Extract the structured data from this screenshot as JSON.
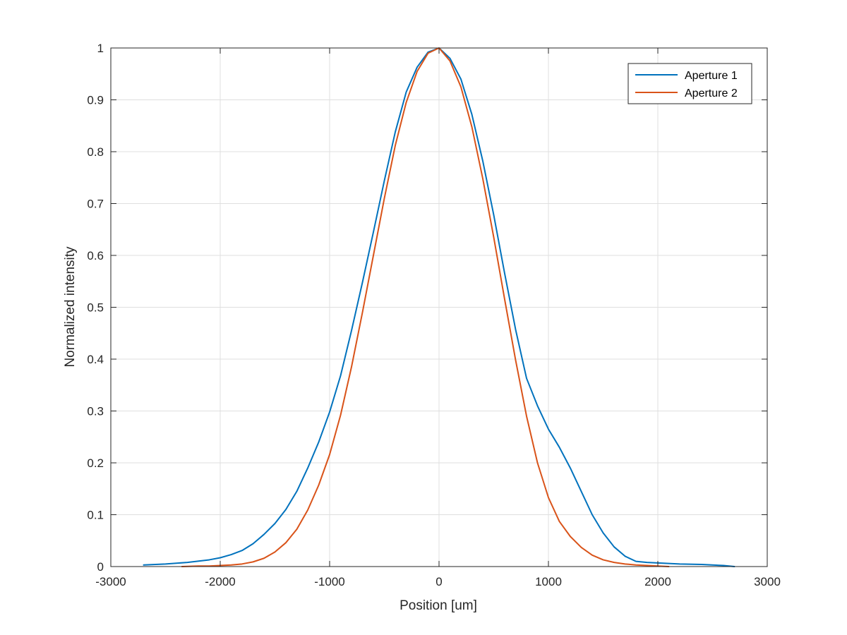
{
  "chart_data": {
    "type": "line",
    "xlabel": "Position [um]",
    "ylabel": "Normalized intensity",
    "xlim": [
      -3000,
      3000
    ],
    "ylim": [
      0,
      1
    ],
    "xticks": [
      -3000,
      -2000,
      -1000,
      0,
      1000,
      2000,
      3000
    ],
    "yticks": [
      0,
      0.1,
      0.2,
      0.3,
      0.4,
      0.5,
      0.6,
      0.7,
      0.8,
      0.9,
      1
    ],
    "xtick_labels": [
      "-3000",
      "-2000",
      "-1000",
      "0",
      "1000",
      "2000",
      "3000"
    ],
    "ytick_labels": [
      "0",
      "0.1",
      "0.2",
      "0.3",
      "0.4",
      "0.5",
      "0.6",
      "0.7",
      "0.8",
      "0.9",
      "1"
    ],
    "grid": true,
    "box": true,
    "legend_position": "top-right",
    "series": [
      {
        "name": "Aperture 1",
        "color": "#0072BD",
        "x": [
          -2700,
          -2500,
          -2300,
          -2100,
          -2000,
          -1900,
          -1800,
          -1700,
          -1600,
          -1500,
          -1400,
          -1300,
          -1200,
          -1100,
          -1000,
          -900,
          -800,
          -700,
          -600,
          -500,
          -400,
          -300,
          -200,
          -100,
          0,
          100,
          200,
          300,
          400,
          500,
          600,
          700,
          800,
          900,
          1000,
          1100,
          1200,
          1300,
          1400,
          1500,
          1600,
          1700,
          1800,
          1900,
          2000,
          2200,
          2400,
          2600,
          2700
        ],
        "y": [
          0.003,
          0.005,
          0.008,
          0.013,
          0.017,
          0.023,
          0.031,
          0.044,
          0.062,
          0.083,
          0.11,
          0.145,
          0.19,
          0.24,
          0.298,
          0.368,
          0.455,
          0.548,
          0.645,
          0.744,
          0.838,
          0.915,
          0.963,
          0.992,
          1.0,
          0.98,
          0.94,
          0.872,
          0.782,
          0.678,
          0.565,
          0.457,
          0.363,
          0.31,
          0.265,
          0.23,
          0.19,
          0.145,
          0.1,
          0.065,
          0.038,
          0.02,
          0.01,
          0.008,
          0.007,
          0.005,
          0.004,
          0.002,
          0.0
        ]
      },
      {
        "name": "Aperture 2",
        "color": "#D95319",
        "x": [
          -2350,
          -2200,
          -2100,
          -2000,
          -1900,
          -1800,
          -1700,
          -1600,
          -1500,
          -1400,
          -1300,
          -1200,
          -1100,
          -1000,
          -900,
          -800,
          -700,
          -600,
          -500,
          -400,
          -300,
          -200,
          -100,
          0,
          100,
          200,
          300,
          400,
          500,
          600,
          700,
          800,
          900,
          1000,
          1100,
          1200,
          1300,
          1400,
          1500,
          1600,
          1700,
          1800,
          1900,
          2000,
          2100
        ],
        "y": [
          0.0,
          0.001,
          0.001,
          0.002,
          0.003,
          0.005,
          0.009,
          0.016,
          0.028,
          0.046,
          0.072,
          0.109,
          0.157,
          0.216,
          0.292,
          0.385,
          0.49,
          0.6,
          0.71,
          0.812,
          0.895,
          0.955,
          0.99,
          1.0,
          0.975,
          0.925,
          0.848,
          0.748,
          0.635,
          0.515,
          0.398,
          0.29,
          0.2,
          0.133,
          0.087,
          0.058,
          0.037,
          0.022,
          0.013,
          0.008,
          0.005,
          0.003,
          0.002,
          0.001,
          0.0
        ]
      }
    ]
  }
}
